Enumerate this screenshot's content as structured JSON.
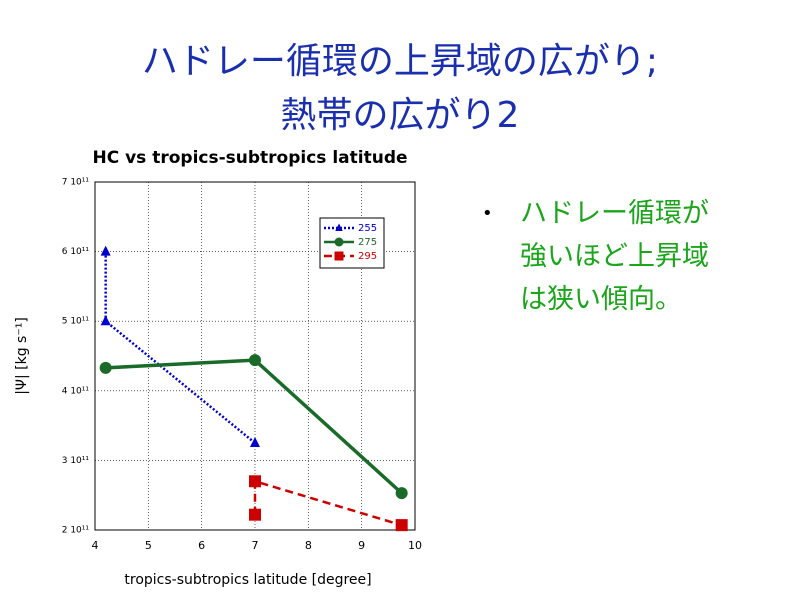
{
  "slide_title": [
    "ハドレー循環の上昇域の広がり;",
    "熱帯の広がり2"
  ],
  "bullet": "ハドレー循環が強いほど上昇域は狭い傾向。",
  "chart_data": {
    "type": "line",
    "title": "HC vs tropics-subtropics latitude",
    "x_label": "tropics-subtropics latitude [degree]",
    "y_label": "|Ψ| [kg s⁻¹]",
    "xlim": [
      4,
      10
    ],
    "xticks": [
      4,
      5,
      6,
      7,
      8,
      9,
      10
    ],
    "ylim": [
      200000000000,
      700000000000
    ],
    "yticks": [
      {
        "value": 200000000000,
        "label": "2 10¹¹"
      },
      {
        "value": 300000000000,
        "label": "3 10¹¹"
      },
      {
        "value": 400000000000,
        "label": "4 10¹¹"
      },
      {
        "value": 500000000000,
        "label": "5 10¹¹"
      },
      {
        "value": 600000000000,
        "label": "6 10¹¹"
      },
      {
        "value": 700000000000,
        "label": "7 10¹¹"
      }
    ],
    "grid": true,
    "legend": "upper right",
    "series": [
      {
        "name": "255",
        "color": "#0000cc",
        "line_style": "dotted",
        "marker": "triangle",
        "x": [
          4.2,
          4.2,
          7.0
        ],
        "values": [
          600000000000,
          500000000000,
          325000000000
        ]
      },
      {
        "name": "275",
        "color": "#1a6b2a",
        "line_style": "solid",
        "marker": "circle",
        "x": [
          4.2,
          7.0,
          9.75
        ],
        "values": [
          433000000000,
          444000000000,
          253000000000
        ]
      },
      {
        "name": "295",
        "color": "#cc0000",
        "line_style": "dashed",
        "marker": "square",
        "x": [
          7.0,
          7.0,
          9.75
        ],
        "values": [
          222000000000,
          270000000000,
          207000000000
        ]
      }
    ]
  }
}
